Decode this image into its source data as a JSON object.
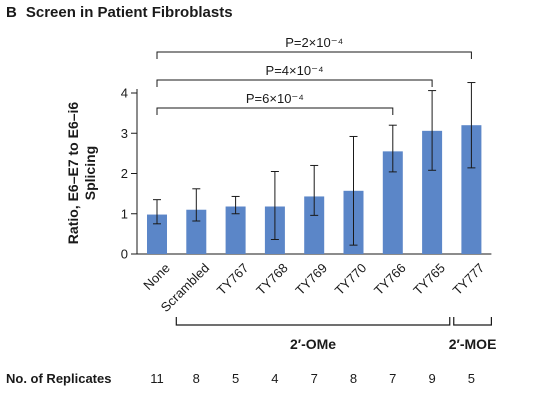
{
  "panel": {
    "letter": "B",
    "title": "Screen in Patient Fibroblasts"
  },
  "chart_data": {
    "type": "bar",
    "categories": [
      "None",
      "Scrambled",
      "TY767",
      "TY768",
      "TY769",
      "TY770",
      "TY766",
      "TY765",
      "TY777"
    ],
    "values": [
      0.98,
      1.1,
      1.18,
      1.18,
      1.43,
      1.57,
      2.55,
      3.06,
      3.2
    ],
    "error_low": [
      0.75,
      0.82,
      1.0,
      0.36,
      0.96,
      0.22,
      2.04,
      2.08,
      2.14
    ],
    "error_high": [
      1.35,
      1.62,
      1.43,
      2.05,
      2.2,
      2.92,
      3.2,
      4.06,
      4.26
    ],
    "ylabel_lines": [
      "Ratio, E6–E7 to E6–i6",
      "Splicing"
    ],
    "xlabel": "",
    "ylim": [
      0,
      4
    ],
    "yticks": [
      0,
      1,
      2,
      3,
      4
    ],
    "bar_color": "#5b86c8",
    "comparisons": [
      {
        "from": "None",
        "to": "TY766",
        "label": "P=6×10⁻⁴"
      },
      {
        "from": "None",
        "to": "TY765",
        "label": "P=4×10⁻⁴"
      },
      {
        "from": "None",
        "to": "TY777",
        "label": "P=2×10⁻⁴"
      }
    ],
    "groups": [
      {
        "label": "2′-OMe",
        "from": "Scrambled",
        "to": "TY765"
      },
      {
        "label": "2′-MOE",
        "from": "TY777",
        "to": "TY777"
      }
    ],
    "replicates_label": "No. of Replicates",
    "replicates": [
      "11",
      "8",
      "5",
      "4",
      "7",
      "8",
      "7",
      "9",
      "5"
    ]
  }
}
